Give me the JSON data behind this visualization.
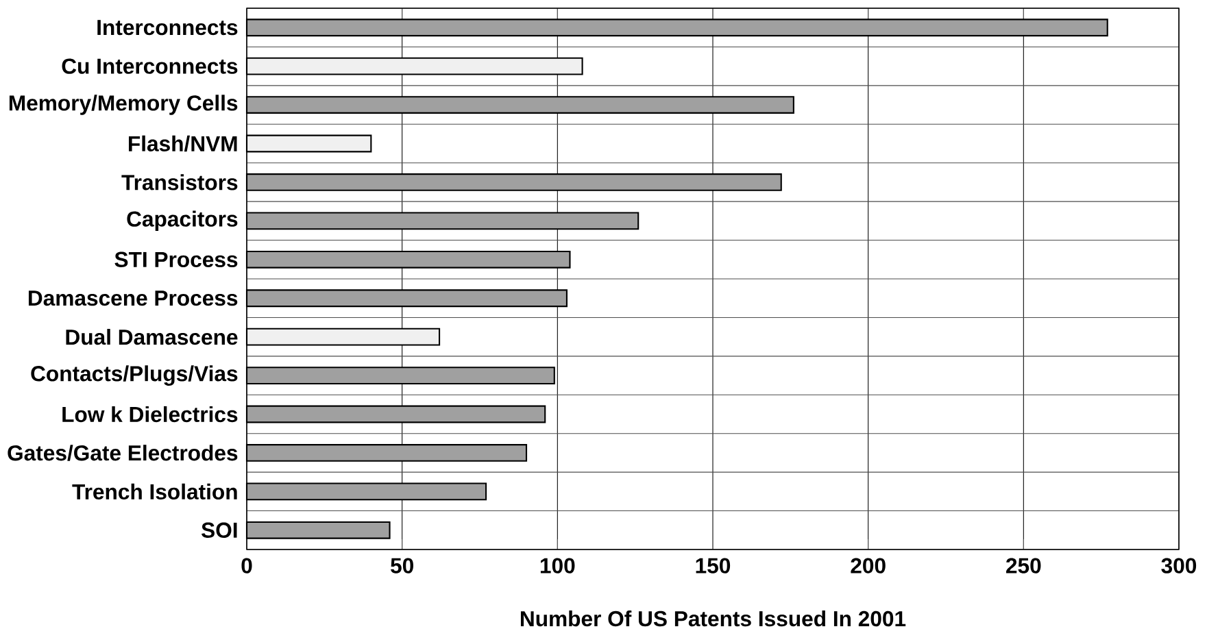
{
  "chart_data": {
    "type": "bar",
    "orientation": "horizontal",
    "xlabel": "Number Of US Patents Issued In 2001",
    "categories": [
      "Interconnects",
      "Cu Interconnects",
      "Memory/Memory Cells",
      "Flash/NVM",
      "Transistors",
      "Capacitors",
      "STI Process",
      "Damascene Process",
      "Dual Damascene",
      "Contacts/Plugs/Vias",
      "Low k Dielectrics",
      "Gates/Gate Electrodes",
      "Trench Isolation",
      "SOI"
    ],
    "values": [
      277,
      108,
      176,
      40,
      172,
      126,
      104,
      103,
      62,
      99,
      96,
      90,
      77,
      46
    ],
    "colors": [
      "#a0a0a0",
      "#f0f0f0",
      "#a0a0a0",
      "#f0f0f0",
      "#a0a0a0",
      "#a0a0a0",
      "#a0a0a0",
      "#a0a0a0",
      "#f0f0f0",
      "#a0a0a0",
      "#a0a0a0",
      "#a0a0a0",
      "#a0a0a0",
      "#a0a0a0"
    ],
    "xlim": [
      0,
      300
    ],
    "xticks": [
      0,
      50,
      100,
      150,
      200,
      250,
      300
    ],
    "grid": true
  }
}
